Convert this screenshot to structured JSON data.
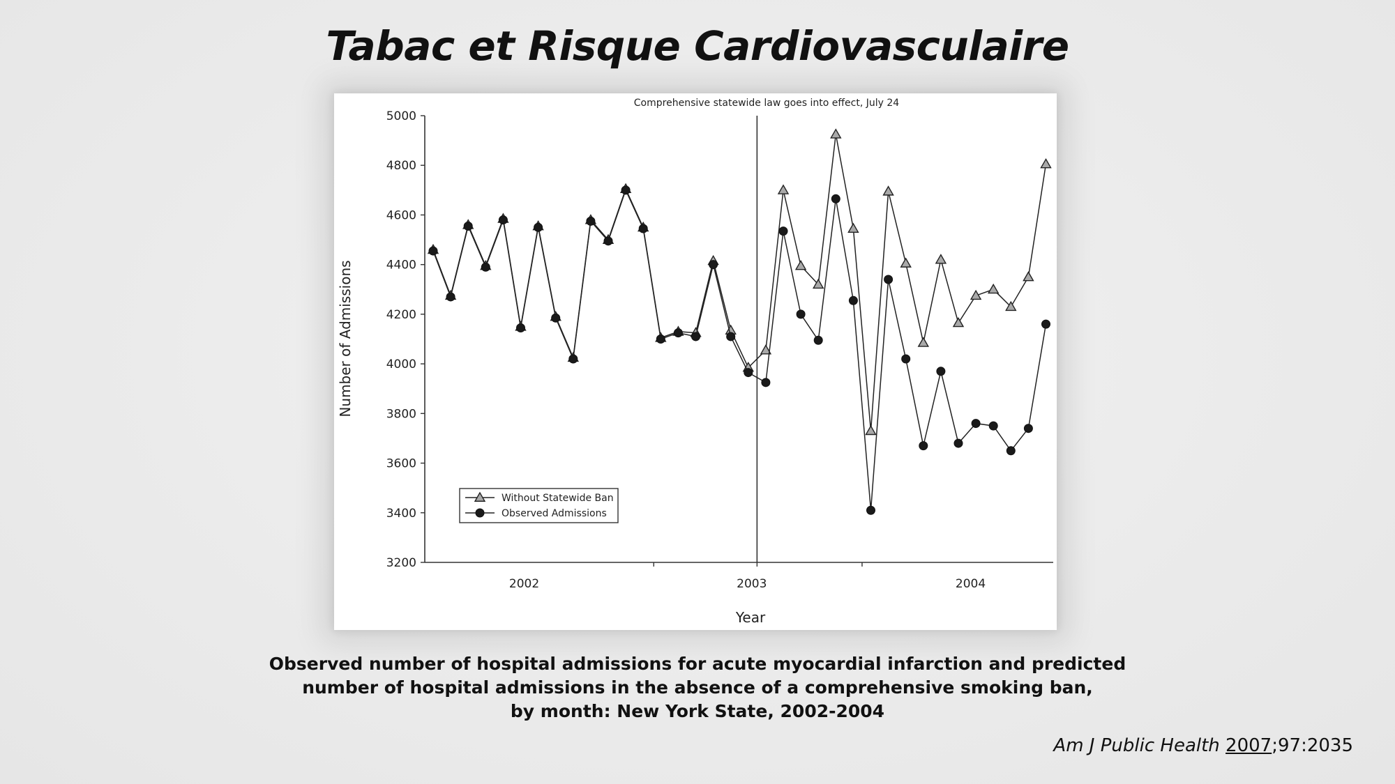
{
  "slide": {
    "title": "Tabac et Risque Cardiovasculaire",
    "caption_lines": [
      "Observed number of hospital admissions for acute myocardial infarction and predicted",
      "number of hospital admissions in the absence of a comprehensive smoking ban,",
      "by month: New York State, 2002-2004"
    ],
    "citation": {
      "journal": "Am J Public Health",
      "year": "2007",
      "rest": ";97:2035"
    }
  },
  "chart_data": {
    "type": "line",
    "title": "",
    "annotation": "Comprehensive statewide law goes into effect, July 24",
    "xlabel": "Year",
    "ylabel": "Number of Admissions",
    "ylim": [
      3200,
      5000
    ],
    "yticks": [
      3200,
      3400,
      3600,
      3800,
      4000,
      4200,
      4400,
      4600,
      4800,
      5000
    ],
    "year_labels": [
      "2002",
      "2003",
      "2004"
    ],
    "months": 36,
    "event_month_index": 18.5,
    "legend_position": "lower-left",
    "grid": false,
    "series": [
      {
        "name": "Without Statewide Ban",
        "marker": "triangle",
        "values": [
          4460,
          4275,
          4560,
          4395,
          4585,
          4150,
          4555,
          4190,
          4025,
          4580,
          4500,
          4705,
          4550,
          4105,
          4130,
          4125,
          4415,
          4135,
          3985,
          4055,
          4700,
          4395,
          4320,
          4925,
          4545,
          3730,
          4695,
          4405,
          4085,
          4420,
          4165,
          4275,
          4300,
          4230,
          4350,
          4805
        ]
      },
      {
        "name": "Observed Admissions",
        "marker": "circle",
        "values": [
          4455,
          4270,
          4555,
          4390,
          4580,
          4145,
          4550,
          4185,
          4020,
          4575,
          4495,
          4700,
          4545,
          4100,
          4125,
          4110,
          4400,
          4110,
          3965,
          3925,
          4535,
          4200,
          4095,
          4665,
          4255,
          3410,
          4340,
          4020,
          3670,
          3970,
          3680,
          3760,
          3750,
          3650,
          3740,
          4160
        ]
      }
    ]
  }
}
